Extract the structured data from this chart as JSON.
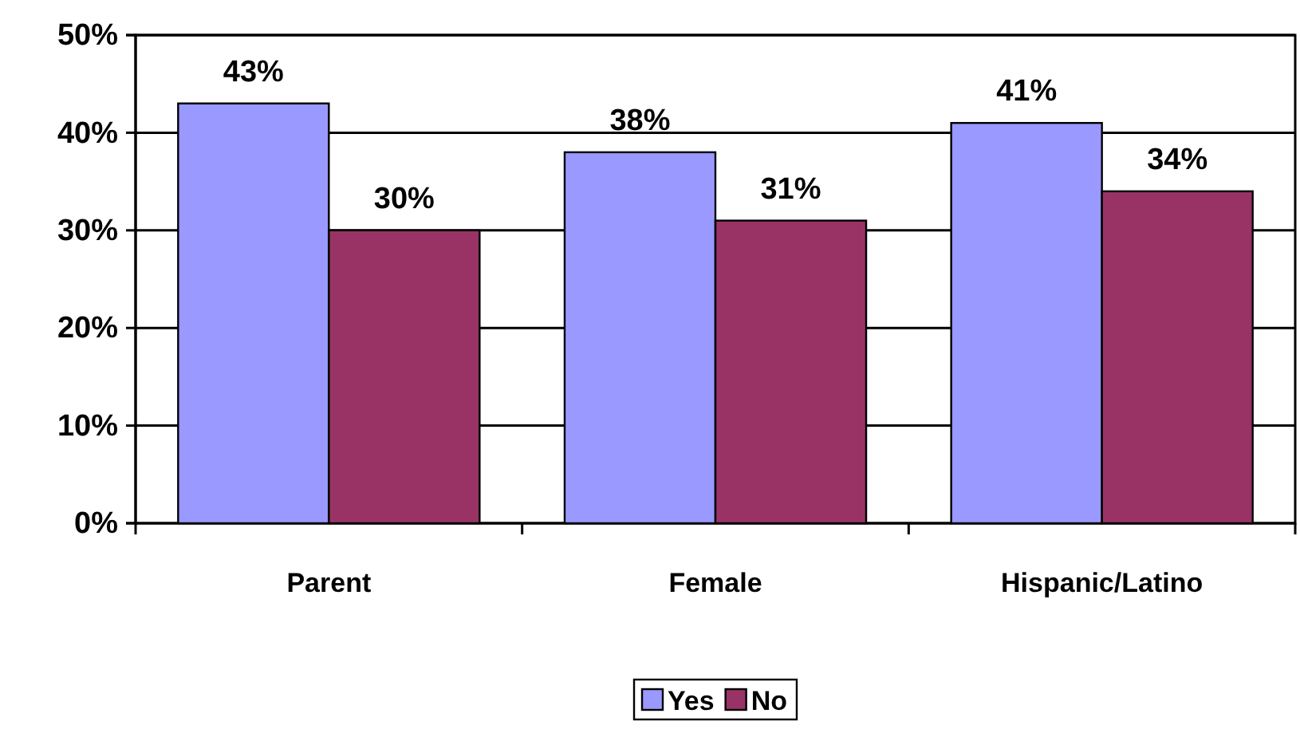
{
  "chart_data": {
    "type": "bar",
    "categories": [
      "Parent",
      "Female",
      "Hispanic/Latino"
    ],
    "series": [
      {
        "name": "Yes",
        "color": "#9999ff",
        "values": [
          43,
          38,
          41
        ],
        "value_labels": [
          "43%",
          "38%",
          "41%"
        ]
      },
      {
        "name": "No",
        "color": "#993366",
        "values": [
          30,
          31,
          34
        ],
        "value_labels": [
          "30%",
          "31%",
          "34%"
        ]
      }
    ],
    "ylim": [
      0,
      50
    ],
    "yticks": [
      {
        "value": 0,
        "label": "0%"
      },
      {
        "value": 10,
        "label": "10%"
      },
      {
        "value": 20,
        "label": "20%"
      },
      {
        "value": 30,
        "label": "30%"
      },
      {
        "value": 40,
        "label": "40%"
      },
      {
        "value": 50,
        "label": "50%"
      }
    ],
    "grid": "y",
    "legend": "bottom"
  }
}
